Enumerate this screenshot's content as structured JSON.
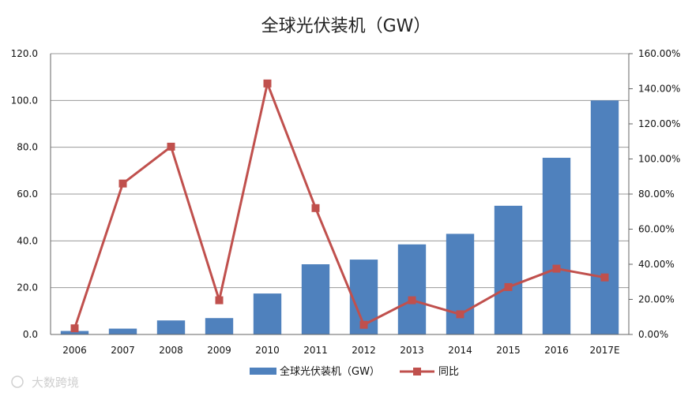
{
  "chart_data": {
    "type": "bar",
    "title": "全球光伏装机（GW）",
    "categories": [
      "2006",
      "2007",
      "2008",
      "2009",
      "2010",
      "2011",
      "2012",
      "2013",
      "2014",
      "2015",
      "2016",
      "2017E"
    ],
    "series": [
      {
        "name": "全球光伏装机（GW）",
        "type": "bar",
        "axis": "left",
        "color": "#4f81bd",
        "values": [
          1.5,
          2.5,
          6.0,
          7.0,
          17.5,
          30.0,
          32.0,
          38.5,
          43.0,
          55.0,
          75.5,
          100.0
        ]
      },
      {
        "name": "同比",
        "type": "line",
        "axis": "right",
        "color": "#c0504d",
        "marker": "square",
        "values": [
          3.5,
          86.0,
          107.0,
          19.5,
          143.0,
          72.0,
          5.5,
          19.5,
          11.5,
          27.0,
          37.5,
          32.5
        ]
      }
    ],
    "y_left": {
      "min": 0,
      "max": 120,
      "ticks": [
        "0.0",
        "20.0",
        "40.0",
        "60.0",
        "80.0",
        "100.0",
        "120.0"
      ]
    },
    "y_right": {
      "min": 0,
      "max": 160,
      "ticks": [
        "0.00%",
        "20.00%",
        "40.00%",
        "60.00%",
        "80.00%",
        "100.00%",
        "120.00%",
        "140.00%",
        "160.00%"
      ]
    },
    "grid": true,
    "legend_position": "bottom",
    "watermark": "大数跨境"
  }
}
